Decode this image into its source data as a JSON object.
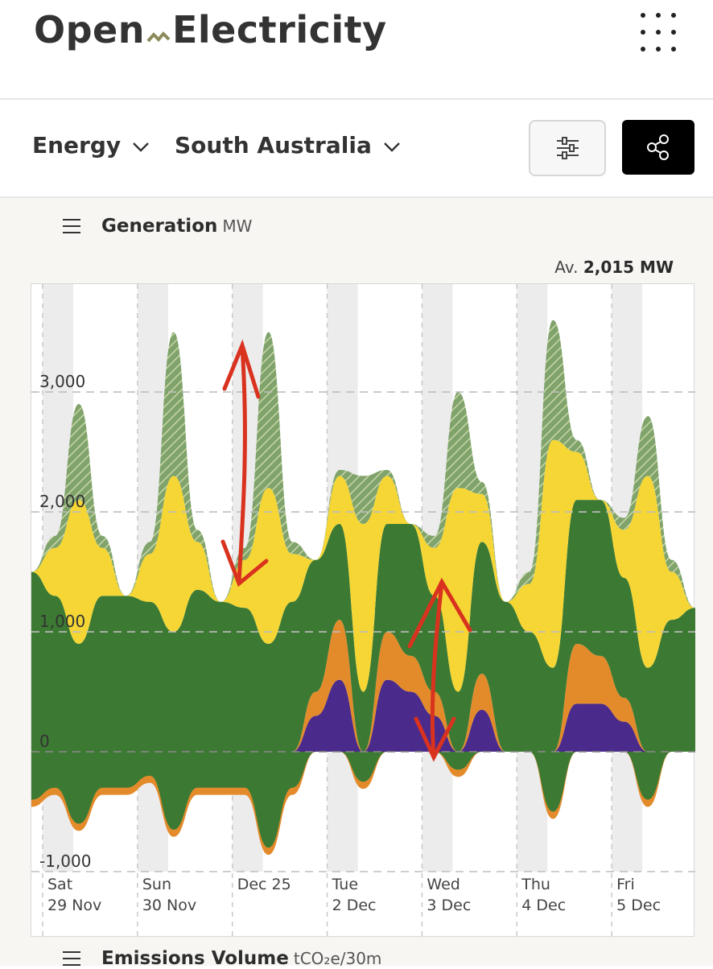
{
  "app": {
    "logo_left": "Open",
    "logo_right": "Electricity"
  },
  "toolbar": {
    "metric": "Energy",
    "region": "South Australia"
  },
  "generation": {
    "title": "Generation",
    "unit": "MW",
    "average_label": "Av.",
    "average_value": "2,015 MW"
  },
  "emissions": {
    "title": "Emissions Volume",
    "unit": "tCO₂e/30m"
  },
  "icons": [
    "logo-mark-icon",
    "menu-dots-icon",
    "chevron-down-icon",
    "filter-sliders-icon",
    "share-icon",
    "hamburger-icon"
  ],
  "colors": {
    "solar": "#f5d635",
    "rooftop_solar_hatch": "#7fa36b",
    "wind": "#3c7a33",
    "battery_discharge": "#4a2a8a",
    "gas": "#e38b2b",
    "hydro_blue": "#3a4fc4",
    "annotation_red": "#d9321f"
  },
  "chart_data": {
    "type": "area",
    "ylabel": "MW",
    "ylim": [
      -1000,
      3900
    ],
    "y_ticks": [
      "3,000",
      "2,000",
      "1,000",
      "0",
      "-1,000"
    ],
    "x_ticks": [
      {
        "day": "Sat",
        "date": "29 Nov"
      },
      {
        "day": "Sun",
        "date": "30 Nov"
      },
      {
        "day": "Dec 25",
        "date": ""
      },
      {
        "day": "Tue",
        "date": "2 Dec"
      },
      {
        "day": "Wed",
        "date": "3 Dec"
      },
      {
        "day": "Thu",
        "date": "4 Dec"
      },
      {
        "day": "Fri",
        "date": "5 Dec"
      }
    ],
    "series": [
      {
        "key": "wind",
        "color": "#3c7a33",
        "x": [
          0,
          0.25,
          0.5,
          0.75,
          1,
          1.25,
          1.5,
          1.75,
          2,
          2.25,
          2.5,
          2.75,
          3,
          3.25,
          3.5,
          3.75,
          4,
          4.25,
          4.5,
          4.75,
          5,
          5.25,
          5.5,
          5.75,
          6,
          6.25,
          6.5,
          6.75,
          7
        ],
        "values": [
          1500,
          1300,
          900,
          1300,
          1300,
          1250,
          1000,
          1350,
          1250,
          1200,
          900,
          1250,
          1100,
          800,
          500,
          900,
          1100,
          800,
          500,
          1100,
          1250,
          1000,
          700,
          1200,
          1300,
          1000,
          700,
          1100,
          1200
        ]
      },
      {
        "key": "gas",
        "color": "#e38b2b",
        "x": [
          0,
          0.25,
          0.5,
          0.75,
          1,
          1.25,
          1.5,
          1.75,
          2,
          2.25,
          2.5,
          2.75,
          3,
          3.25,
          3.5,
          3.75,
          4,
          4.25,
          4.5,
          4.75,
          5,
          5.25,
          5.5,
          5.75,
          6,
          6.25,
          6.5,
          6.75,
          7
        ],
        "values": [
          0,
          0,
          0,
          0,
          0,
          0,
          0,
          0,
          0,
          0,
          0,
          0,
          200,
          500,
          0,
          400,
          300,
          200,
          0,
          300,
          0,
          0,
          0,
          500,
          400,
          200,
          0,
          0,
          0
        ]
      },
      {
        "key": "battery",
        "color": "#4a2a8a",
        "x": [
          0,
          0.25,
          0.5,
          0.75,
          1,
          1.25,
          1.5,
          1.75,
          2,
          2.25,
          2.5,
          2.75,
          3,
          3.25,
          3.5,
          3.75,
          4,
          4.25,
          4.5,
          4.75,
          5,
          5.25,
          5.5,
          5.75,
          6,
          6.25,
          6.5,
          6.75,
          7
        ],
        "values": [
          0,
          0,
          0,
          0,
          0,
          0,
          0,
          0,
          0,
          0,
          0,
          0,
          300,
          600,
          0,
          600,
          500,
          300,
          0,
          350,
          0,
          0,
          0,
          400,
          400,
          250,
          0,
          0,
          0
        ]
      },
      {
        "key": "solar",
        "color": "#f5d635",
        "x": [
          0,
          0.25,
          0.5,
          0.75,
          1,
          1.25,
          1.5,
          1.75,
          2,
          2.25,
          2.5,
          2.75,
          3,
          3.25,
          3.5,
          3.75,
          4,
          4.25,
          4.5,
          4.75,
          5,
          5.25,
          5.5,
          5.75,
          6,
          6.25,
          6.5,
          6.75,
          7
        ],
        "values": [
          0,
          400,
          1200,
          400,
          0,
          400,
          1300,
          400,
          0,
          400,
          1300,
          400,
          0,
          400,
          1400,
          400,
          0,
          400,
          1700,
          400,
          0,
          400,
          1900,
          400,
          0,
          400,
          1600,
          400,
          0
        ]
      },
      {
        "key": "rooftop_solar",
        "color": "#7fa36b",
        "x": [
          0,
          0.25,
          0.5,
          0.75,
          1,
          1.25,
          1.5,
          1.75,
          2,
          2.25,
          2.5,
          2.75,
          3,
          3.25,
          3.5,
          3.75,
          4,
          4.25,
          4.5,
          4.75,
          5,
          5.25,
          5.5,
          5.75,
          6,
          6.25,
          6.5,
          6.75,
          7
        ],
        "values": [
          0,
          100,
          800,
          100,
          0,
          100,
          1200,
          100,
          0,
          100,
          1300,
          100,
          0,
          50,
          400,
          50,
          0,
          100,
          800,
          100,
          0,
          100,
          1000,
          100,
          0,
          100,
          500,
          100,
          0
        ]
      },
      {
        "key": "negative_load",
        "color": "#3c7a33",
        "x": [
          0,
          0.25,
          0.5,
          0.75,
          1,
          1.25,
          1.5,
          1.75,
          2,
          2.25,
          2.5,
          2.75,
          3,
          3.25,
          3.5,
          3.75,
          4,
          4.25,
          4.5,
          4.75,
          5,
          5.25,
          5.5,
          5.75,
          6,
          6.25,
          6.5,
          6.75,
          7
        ],
        "values": [
          -400,
          -300,
          -600,
          -300,
          -300,
          -200,
          -650,
          -300,
          -300,
          -300,
          -800,
          -300,
          0,
          0,
          -250,
          0,
          0,
          0,
          -150,
          0,
          0,
          0,
          -500,
          0,
          0,
          0,
          -400,
          0,
          0
        ]
      }
    ],
    "annotations": [
      "red double-headed arrow Dec 25 (approx 1,400 to 3,450)",
      "red double-headed arrow Wed 3 Dec (approx 0 to 1,450)"
    ]
  }
}
